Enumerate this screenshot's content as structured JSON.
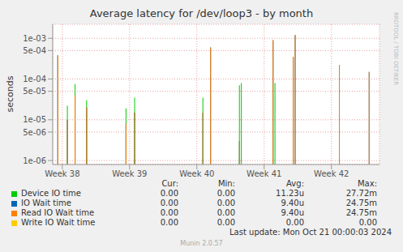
{
  "chart_data": {
    "type": "bar",
    "title": "Average latency for /dev/loop3 - by month",
    "y_label": "seconds",
    "x": [
      0.5,
      1.5,
      2.3,
      3.5,
      7.6,
      8.5,
      15.6,
      16.4,
      19.4,
      19.6,
      22.9,
      23.1,
      25.0,
      25.2,
      29.8,
      32.9
    ],
    "xlim": [
      0,
      34
    ],
    "xticks": [
      {
        "value": 1,
        "label": "Week 38"
      },
      {
        "value": 8,
        "label": "Week 39"
      },
      {
        "value": 15,
        "label": "Week 40"
      },
      {
        "value": 22,
        "label": "Week 41"
      },
      {
        "value": 29,
        "label": "Week 42"
      }
    ],
    "ylim": [
      8e-07,
      0.0022
    ],
    "yticks": [
      {
        "value": 1e-06,
        "label": "1e-06"
      },
      {
        "value": 5e-06,
        "label": "5e-06"
      },
      {
        "value": 1e-05,
        "label": "1e-05"
      },
      {
        "value": 5e-05,
        "label": "5e-05"
      },
      {
        "value": 0.0001,
        "label": "1e-04"
      },
      {
        "value": 0.0005,
        "label": "5e-04"
      },
      {
        "value": 0.001,
        "label": "1e-03"
      }
    ],
    "log": "y",
    "grid": true,
    "legend_columns": [
      "Cur:",
      "Min:",
      "Avg:",
      "Max:"
    ],
    "series": [
      {
        "name": "Device IO time",
        "color": "#00cc00",
        "values": [
          null,
          2.2e-05,
          7.5e-05,
          3e-05,
          1.9e-05,
          3.5e-05,
          3.5e-05,
          null,
          7e-05,
          8e-05,
          null,
          8e-05,
          null,
          null,
          null,
          null
        ],
        "stats": [
          "0.00",
          "0.00",
          "11.23u",
          "27.72m"
        ]
      },
      {
        "name": "IO Wait time",
        "color": "#0066b3",
        "values": [
          0.00038,
          1e-05,
          4e-05,
          2e-05,
          8e-06,
          1.5e-05,
          1.5e-05,
          0.0006,
          3e-06,
          null,
          0.0009,
          null,
          0.00035,
          0.0012,
          0.00022,
          0.00015
        ],
        "stats": [
          "0.00",
          "0.00",
          "9.40u",
          "24.75m"
        ]
      },
      {
        "name": "Read IO Wait time",
        "color": "#ff8000",
        "values": [
          0.00038,
          1e-05,
          4e-05,
          2e-05,
          8e-06,
          1.5e-05,
          1.5e-05,
          0.0006,
          3e-06,
          null,
          0.0009,
          null,
          0.00035,
          0.0012,
          0.00022,
          0.00015
        ],
        "stats": [
          "0.00",
          "0.00",
          "9.40u",
          "24.75m"
        ]
      },
      {
        "name": "Write IO Wait time",
        "color": "#ffcc00",
        "values": [
          null,
          null,
          null,
          null,
          null,
          null,
          null,
          null,
          null,
          null,
          null,
          null,
          null,
          null,
          null,
          null
        ],
        "stats": [
          "0.00",
          "0.00",
          "0.00",
          "0.00"
        ]
      }
    ],
    "last_update": "Last update: Mon Oct 21 00:00:03 2024",
    "footer": "Munin 2.0.57",
    "side_label": "RRDTOOL / TOBI OETIKER"
  }
}
